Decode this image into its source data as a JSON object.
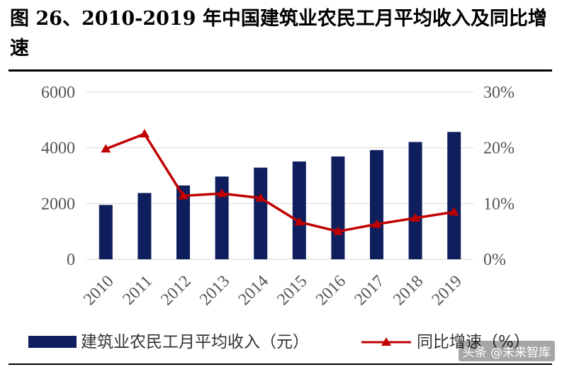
{
  "title": "图 26、2010-2019 年中国建筑业农民工月平均收入及同比增速",
  "watermark": "头条 @未来智库",
  "colors": {
    "bar": "#0f1f5e",
    "line": "#c00000",
    "grid": "#d9d9d9"
  },
  "chart_data": {
    "type": "bar",
    "categories": [
      "2010",
      "2011",
      "2012",
      "2013",
      "2014",
      "2015",
      "2016",
      "2017",
      "2018",
      "2019"
    ],
    "series": [
      {
        "name": "建筑业农民工月平均收入（元）",
        "type": "bar",
        "axis": "left",
        "values": [
          1950,
          2380,
          2650,
          2970,
          3290,
          3510,
          3690,
          3920,
          4210,
          4570
        ]
      },
      {
        "name": "同比增速（%）",
        "type": "line",
        "axis": "right",
        "marker": "triangle",
        "values": [
          19.8,
          22.5,
          11.4,
          11.8,
          11.0,
          6.7,
          5.0,
          6.3,
          7.4,
          8.5
        ]
      }
    ],
    "y_left": {
      "min": 0,
      "max": 6000,
      "ticks": [
        "0",
        "2000",
        "4000",
        "6000"
      ]
    },
    "y_right": {
      "min": 0,
      "max": 30,
      "ticks": [
        "0%",
        "10%",
        "20%",
        "30%"
      ]
    },
    "grid": true,
    "legend_position": "bottom"
  }
}
